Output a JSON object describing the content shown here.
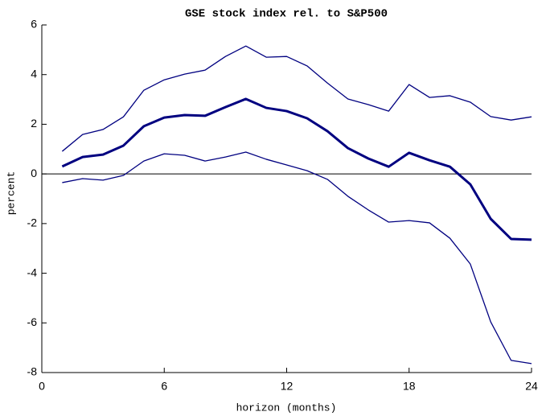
{
  "chart_data": {
    "type": "line",
    "title": "GSE stock index rel. to S&P500",
    "x_label": "horizon (months)",
    "y_label": "percent",
    "x": [
      1,
      2,
      3,
      4,
      5,
      6,
      7,
      8,
      9,
      10,
      11,
      12,
      13,
      14,
      15,
      16,
      17,
      18,
      19,
      20,
      21,
      22,
      23,
      24
    ],
    "series": [
      {
        "color": "#000080",
        "linewidth": 1.3,
        "values": [
          0.91,
          1.59,
          1.79,
          2.3,
          3.37,
          3.79,
          4.02,
          4.18,
          4.73,
          5.15,
          4.7,
          4.73,
          4.35,
          3.66,
          3.02,
          2.79,
          2.53,
          3.6,
          3.08,
          3.15,
          2.89,
          2.31,
          2.17,
          2.3
        ]
      },
      {
        "color": "#000080",
        "linewidth": 3,
        "values": [
          0.3,
          0.68,
          0.78,
          1.14,
          1.92,
          2.27,
          2.37,
          2.34,
          2.69,
          3.02,
          2.66,
          2.53,
          2.24,
          1.72,
          1.04,
          0.62,
          0.29,
          0.85,
          0.55,
          0.29,
          -0.42,
          -1.81,
          -2.62,
          -2.65
        ]
      },
      {
        "color": "#000080",
        "linewidth": 1.3,
        "values": [
          -0.35,
          -0.19,
          -0.25,
          -0.06,
          0.52,
          0.81,
          0.75,
          0.52,
          0.68,
          0.88,
          0.59,
          0.36,
          0.13,
          -0.22,
          -0.9,
          -1.45,
          -1.94,
          -1.88,
          -1.97,
          -2.59,
          -3.63,
          -5.96,
          -7.51,
          -7.64
        ]
      }
    ],
    "reference_line": 0,
    "xlim": [
      0,
      24
    ],
    "xticks": [
      0,
      6,
      12,
      18,
      24
    ],
    "ylim": [
      -8,
      6
    ],
    "yticks": [
      -8,
      -6,
      -4,
      -2,
      0,
      2,
      4,
      6
    ],
    "grid": false
  }
}
